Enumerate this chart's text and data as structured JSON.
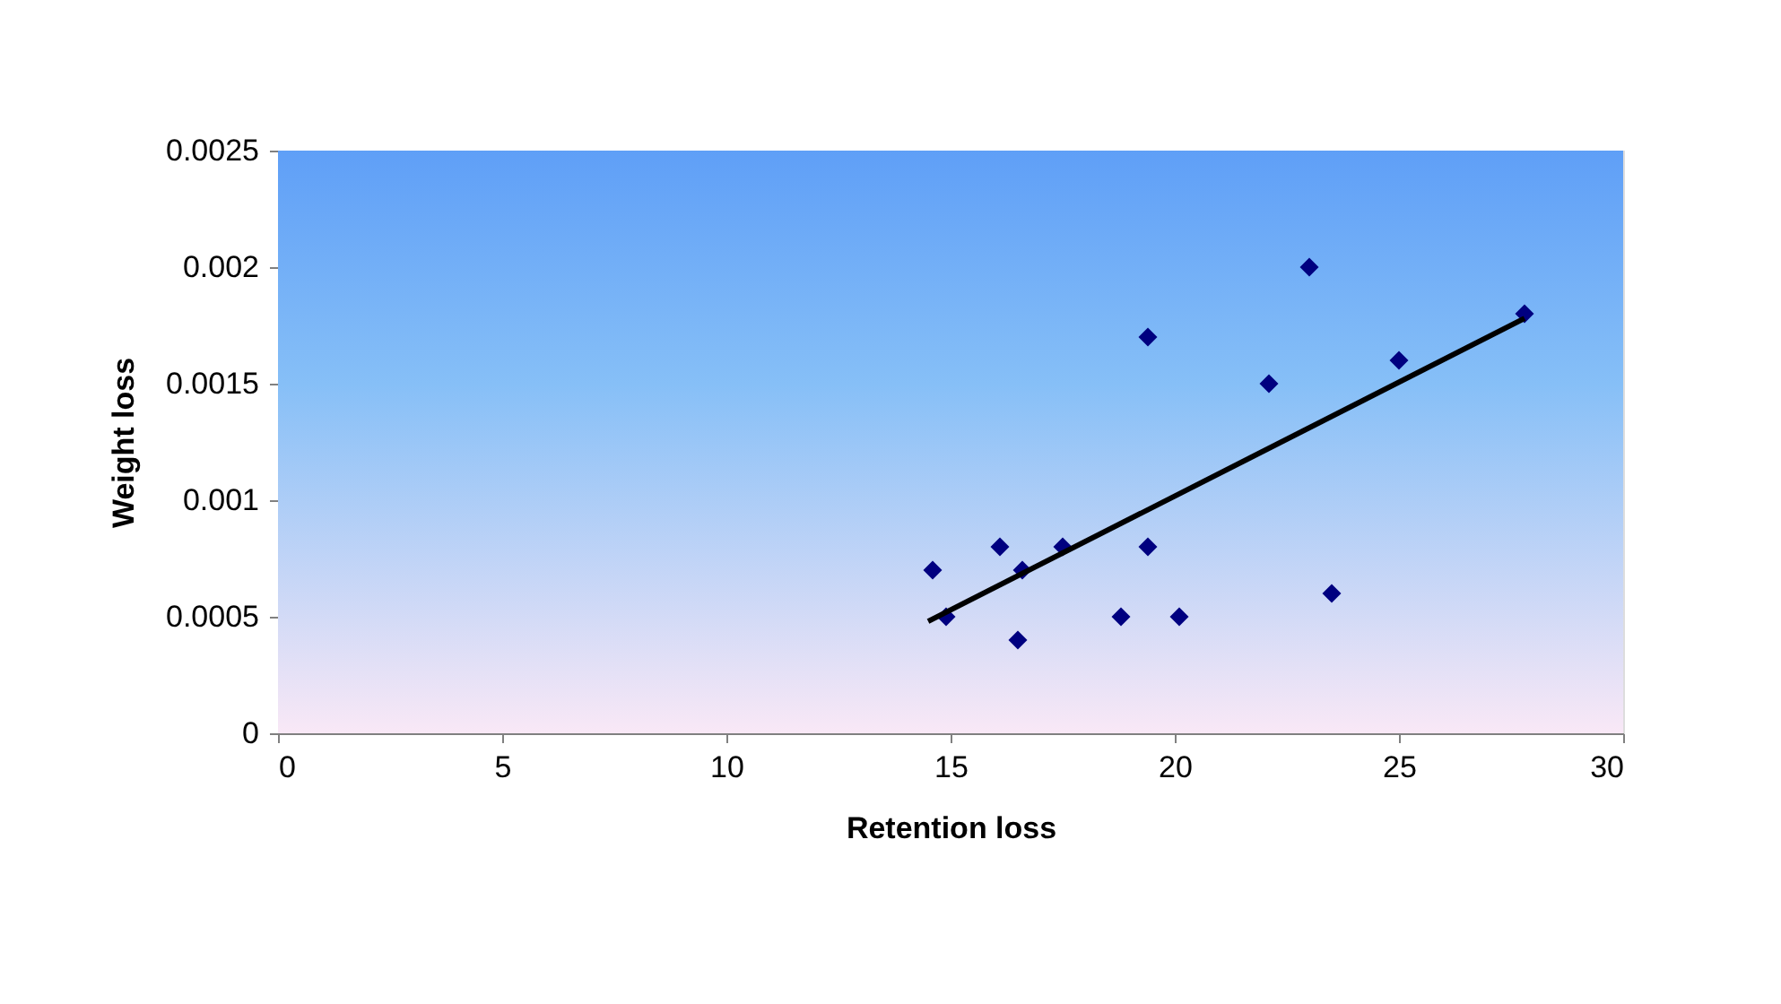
{
  "chart_data": {
    "type": "scatter",
    "xlabel": "Retention loss",
    "ylabel": "Weight loss",
    "xlim": [
      0,
      30
    ],
    "xticks": [
      0,
      5,
      10,
      15,
      20,
      25,
      30
    ],
    "ylim": [
      0,
      0.0025
    ],
    "yticks": [
      0,
      0.0005,
      0.001,
      0.0015,
      0.002,
      0.0025
    ],
    "series": [
      {
        "marker": "diamond",
        "color": "#000080",
        "x": [
          14.6,
          14.9,
          16.1,
          16.6,
          16.5,
          17.5,
          18.8,
          19.4,
          19.4,
          20.1,
          22.1,
          23.0,
          23.5,
          25.0,
          27.8
        ],
        "values": [
          0.0007,
          0.0005,
          0.0008,
          0.0007,
          0.0004,
          0.0008,
          0.0005,
          0.0017,
          0.0008,
          0.0005,
          0.0015,
          0.002,
          0.0006,
          0.0016,
          0.0018
        ]
      },
      {
        "type": "line",
        "color": "#000000",
        "x": [
          14.5,
          27.8
        ],
        "values": [
          0.00048,
          0.00178
        ]
      }
    ]
  }
}
